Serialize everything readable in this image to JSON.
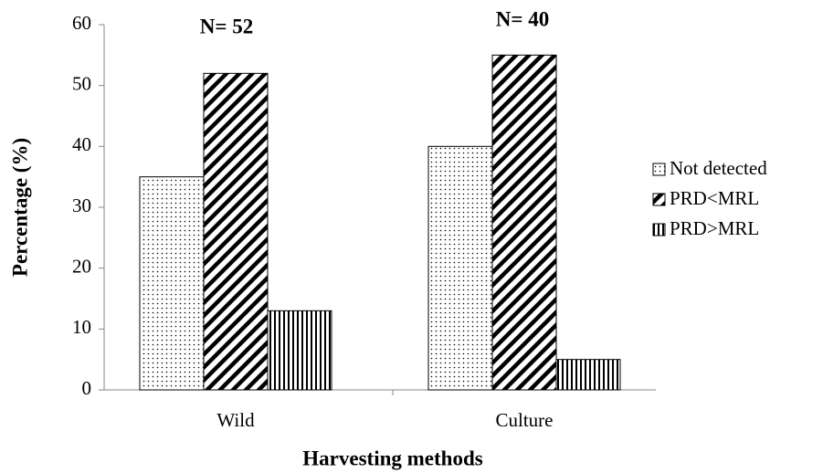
{
  "chart_data": {
    "type": "bar",
    "categories": [
      "Wild",
      "Culture"
    ],
    "series": [
      {
        "name": "Not detected",
        "color": "#000000",
        "pattern": "dots",
        "values": [
          35,
          40
        ]
      },
      {
        "name": "PRD<MRL",
        "color": "#000000",
        "pattern": "diagonal",
        "values": [
          52,
          55
        ]
      },
      {
        "name": "PRD>MRL",
        "color": "#000000",
        "pattern": "vertical",
        "values": [
          13,
          5
        ]
      }
    ],
    "annotations": [
      "N= 52",
      "N= 40"
    ],
    "xlabel": "Harvesting methods",
    "ylabel": "Percentage (%)",
    "ylim": [
      0,
      60
    ],
    "yticks": [
      0,
      10,
      20,
      30,
      40,
      50,
      60
    ],
    "grid": false,
    "legend": "right"
  }
}
